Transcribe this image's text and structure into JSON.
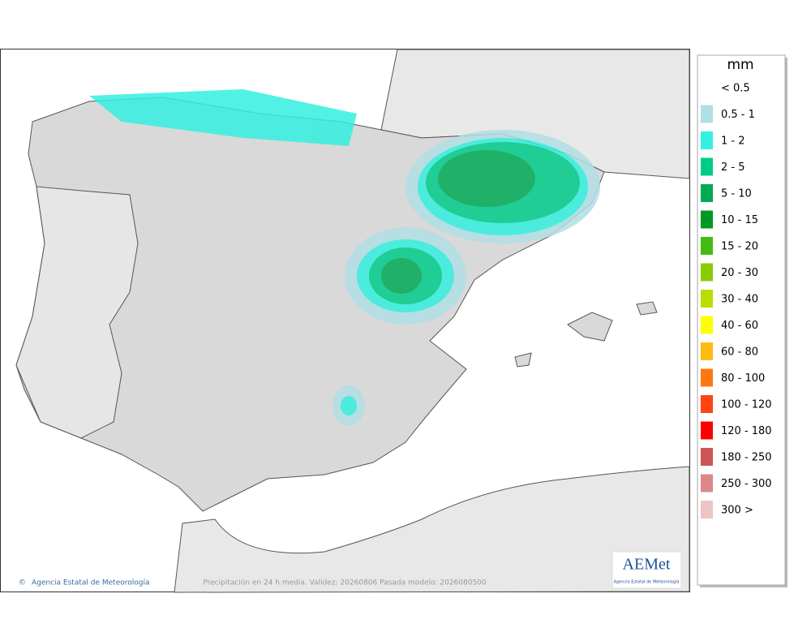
{
  "legend": {
    "title": "mm",
    "items": [
      {
        "label": "< 0.5"
      },
      {
        "label": "0.5 - 1",
        "color": "#b0dfe5"
      },
      {
        "label": "1 - 2",
        "color": "#33f0e0"
      },
      {
        "label": "2 - 5",
        "color": "#00cc88"
      },
      {
        "label": "5 - 10",
        "color": "#00aa55"
      },
      {
        "label": "10 - 15",
        "color": "#009922"
      },
      {
        "label": "15 - 20",
        "color": "#44bb11"
      },
      {
        "label": "20 - 30",
        "color": "#88cc00"
      },
      {
        "label": "30 - 40",
        "color": "#bbdd00"
      },
      {
        "label": "40 - 60",
        "color": "#ffff00"
      },
      {
        "label": "60 - 80",
        "color": "#ffbb11"
      },
      {
        "label": "80 - 100",
        "color": "#ff7711"
      },
      {
        "label": "100 - 120",
        "color": "#ff4411"
      },
      {
        "label": "120 - 180",
        "color": "#ff0000"
      },
      {
        "label": "180 - 250",
        "color": "#cc5555"
      },
      {
        "label": "250 - 300",
        "color": "#dd8888"
      },
      {
        "label": "300 >",
        "color": "#eec4c4"
      }
    ]
  },
  "footer": {
    "credit": "Agencia Estatal de Meteorología",
    "caption": "Precipitación en 24 h media. Validez: 20260806 Pasada modelo: 2026080500"
  },
  "logo": {
    "brand": "AEMet",
    "subtitle": "Agencia Estatal de Meteorología"
  }
}
